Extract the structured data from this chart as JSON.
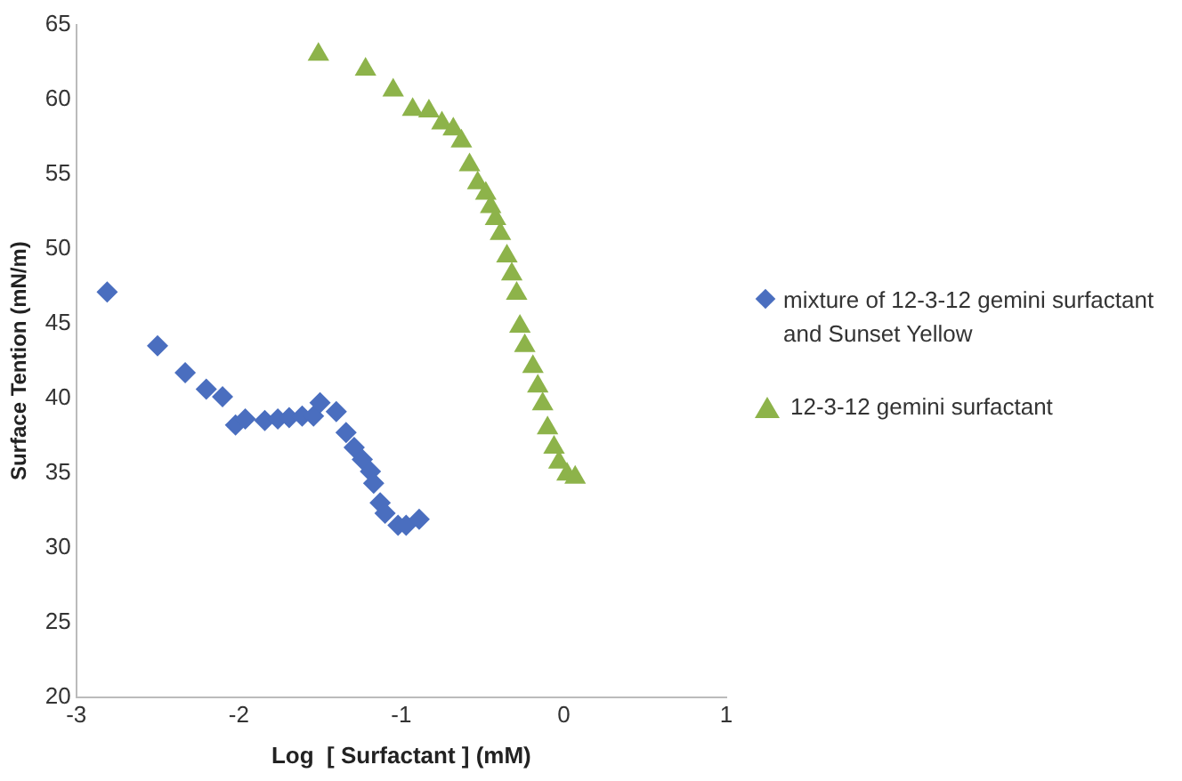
{
  "chart_data": {
    "type": "scatter",
    "xlabel": "Log  [ Surfactant ] (mM)",
    "ylabel": "Surface Tention (mN/m)",
    "xlim": [
      -3,
      1
    ],
    "xticks": [
      -3,
      -2,
      -1,
      0,
      1
    ],
    "ylim": [
      20,
      65
    ],
    "yticks": [
      20,
      25,
      30,
      35,
      40,
      45,
      50,
      55,
      60,
      65
    ],
    "grid": false,
    "legend": "right",
    "series": [
      {
        "name": "mixture of 12-3-12 gemini surfactant and Sunset Yellow",
        "color": "#4a6ebf",
        "marker": "diamond",
        "x": [
          -2.81,
          -2.5,
          -2.33,
          -2.2,
          -2.1,
          -2.02,
          -1.96,
          -1.84,
          -1.76,
          -1.69,
          -1.61,
          -1.54,
          -1.5,
          -1.4,
          -1.34,
          -1.29,
          -1.24,
          -1.19,
          -1.17,
          -1.13,
          -1.1,
          -1.02,
          -0.97,
          -0.89
        ],
        "values": [
          47.1,
          43.5,
          41.7,
          40.6,
          40.1,
          38.2,
          38.6,
          38.5,
          38.6,
          38.7,
          38.8,
          38.8,
          39.7,
          39.1,
          37.7,
          36.7,
          35.9,
          35.1,
          34.3,
          33.0,
          32.3,
          31.5,
          31.5,
          31.9
        ]
      },
      {
        "name": "12-3-12 gemini surfactant",
        "color": "#8db34a",
        "marker": "triangle",
        "x": [
          -1.51,
          -1.22,
          -1.05,
          -0.93,
          -0.83,
          -0.75,
          -0.68,
          -0.63,
          -0.58,
          -0.53,
          -0.48,
          -0.45,
          -0.42,
          -0.39,
          -0.35,
          -0.32,
          -0.29,
          -0.27,
          -0.24,
          -0.19,
          -0.16,
          -0.13,
          -0.1,
          -0.06,
          -0.03,
          0.02,
          0.07
        ],
        "values": [
          63.0,
          62.0,
          60.6,
          59.3,
          59.2,
          58.4,
          58.0,
          57.2,
          55.6,
          54.4,
          53.7,
          52.8,
          52.0,
          51.0,
          49.5,
          48.3,
          47.0,
          44.8,
          43.5,
          42.1,
          40.8,
          39.6,
          38.0,
          36.7,
          35.7,
          34.9,
          34.7
        ]
      }
    ]
  }
}
